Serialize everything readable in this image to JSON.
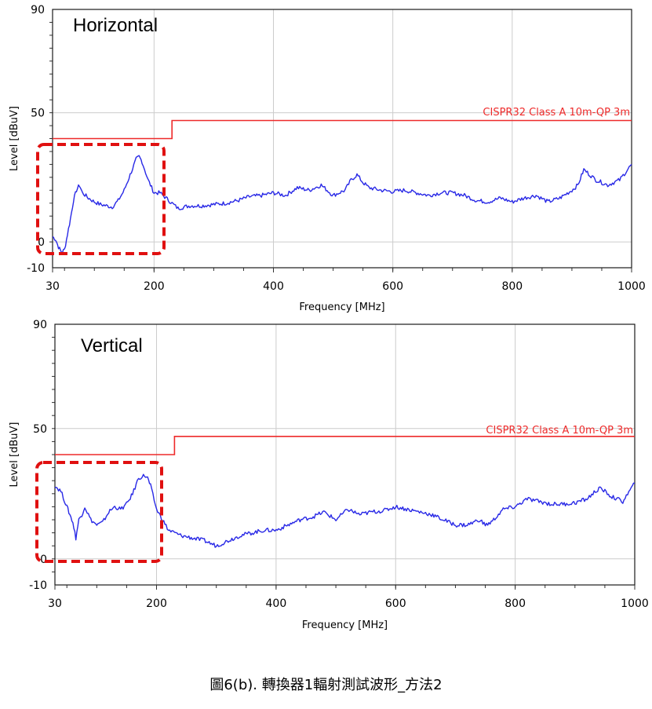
{
  "chart_data": [
    {
      "type": "line",
      "title": "Horizontal",
      "xlabel": "Frequency [MHz]",
      "ylabel": "Level [dBuV]",
      "xlim": [
        30,
        1000
      ],
      "ylim": [
        -10,
        90
      ],
      "x_ticks": [
        30,
        200,
        400,
        600,
        800,
        1000
      ],
      "y_ticks": [
        -10,
        0,
        50,
        90
      ],
      "grid": true,
      "limit_line": {
        "name": "CISPR32 Class A 10m-QP 3m",
        "points": [
          [
            30,
            40
          ],
          [
            230,
            40
          ],
          [
            230,
            47
          ],
          [
            1000,
            47
          ]
        ]
      },
      "series": [
        {
          "points": [
            [
              30,
              2
            ],
            [
              35,
              1
            ],
            [
              40,
              -2
            ],
            [
              45,
              -4
            ],
            [
              50,
              -3
            ],
            [
              55,
              3
            ],
            [
              60,
              9
            ],
            [
              65,
              16
            ],
            [
              70,
              20
            ],
            [
              75,
              22
            ],
            [
              80,
              19
            ],
            [
              90,
              17
            ],
            [
              100,
              15.5
            ],
            [
              110,
              14.5
            ],
            [
              120,
              14
            ],
            [
              130,
              13.5
            ],
            [
              140,
              16
            ],
            [
              150,
              20
            ],
            [
              160,
              26
            ],
            [
              170,
              32
            ],
            [
              175,
              33
            ],
            [
              180,
              31
            ],
            [
              190,
              24
            ],
            [
              200,
              19
            ],
            [
              210,
              19
            ],
            [
              220,
              17
            ],
            [
              230,
              15
            ],
            [
              240,
              13
            ],
            [
              250,
              13.5
            ],
            [
              260,
              14
            ],
            [
              280,
              14
            ],
            [
              300,
              14.5
            ],
            [
              320,
              15
            ],
            [
              340,
              16
            ],
            [
              360,
              17.5
            ],
            [
              380,
              18
            ],
            [
              400,
              19
            ],
            [
              420,
              18
            ],
            [
              440,
              21
            ],
            [
              460,
              20
            ],
            [
              480,
              22
            ],
            [
              500,
              18
            ],
            [
              520,
              20
            ],
            [
              530,
              24
            ],
            [
              540,
              26
            ],
            [
              550,
              23
            ],
            [
              560,
              21
            ],
            [
              580,
              20
            ],
            [
              600,
              19.5
            ],
            [
              620,
              20
            ],
            [
              640,
              19
            ],
            [
              660,
              18
            ],
            [
              680,
              19
            ],
            [
              700,
              19
            ],
            [
              720,
              18
            ],
            [
              740,
              16
            ],
            [
              760,
              15.5
            ],
            [
              780,
              17
            ],
            [
              800,
              15.5
            ],
            [
              820,
              17
            ],
            [
              840,
              18
            ],
            [
              860,
              15.5
            ],
            [
              880,
              17
            ],
            [
              900,
              20
            ],
            [
              910,
              22
            ],
            [
              920,
              28
            ],
            [
              930,
              26
            ],
            [
              940,
              24
            ],
            [
              960,
              22
            ],
            [
              980,
              24
            ],
            [
              1000,
              30
            ]
          ]
        }
      ]
    },
    {
      "type": "line",
      "title": "Vertical",
      "xlabel": "Frequency [MHz]",
      "ylabel": "Level [dBuV]",
      "xlim": [
        30,
        1000
      ],
      "ylim": [
        -10,
        90
      ],
      "x_ticks": [
        30,
        200,
        400,
        600,
        800,
        1000
      ],
      "y_ticks": [
        -10,
        0,
        50,
        90
      ],
      "grid": true,
      "limit_line": {
        "name": "CISPR32 Class A 10m-QP 3m",
        "points": [
          [
            30,
            40
          ],
          [
            230,
            40
          ],
          [
            230,
            47
          ],
          [
            1000,
            47
          ]
        ]
      },
      "series": [
        {
          "points": [
            [
              30,
              28
            ],
            [
              40,
              26
            ],
            [
              50,
              20
            ],
            [
              55,
              17
            ],
            [
              60,
              14
            ],
            [
              65,
              8
            ],
            [
              70,
              15
            ],
            [
              75,
              17
            ],
            [
              80,
              20
            ],
            [
              90,
              15
            ],
            [
              100,
              13
            ],
            [
              110,
              14
            ],
            [
              120,
              18
            ],
            [
              130,
              20
            ],
            [
              140,
              19
            ],
            [
              150,
              21
            ],
            [
              160,
              25
            ],
            [
              170,
              31
            ],
            [
              180,
              32
            ],
            [
              185,
              31
            ],
            [
              190,
              28
            ],
            [
              200,
              19
            ],
            [
              210,
              15
            ],
            [
              220,
              11
            ],
            [
              240,
              9
            ],
            [
              260,
              8
            ],
            [
              280,
              7
            ],
            [
              300,
              5
            ],
            [
              320,
              7
            ],
            [
              340,
              9
            ],
            [
              360,
              10
            ],
            [
              380,
              11
            ],
            [
              400,
              11
            ],
            [
              420,
              13
            ],
            [
              440,
              15
            ],
            [
              460,
              16
            ],
            [
              480,
              18
            ],
            [
              500,
              15
            ],
            [
              520,
              19
            ],
            [
              540,
              17
            ],
            [
              560,
              18
            ],
            [
              580,
              18.5
            ],
            [
              600,
              20
            ],
            [
              620,
              19
            ],
            [
              640,
              18
            ],
            [
              660,
              17
            ],
            [
              680,
              15
            ],
            [
              700,
              13
            ],
            [
              720,
              13
            ],
            [
              740,
              15
            ],
            [
              750,
              13
            ],
            [
              760,
              14
            ],
            [
              780,
              19
            ],
            [
              800,
              20
            ],
            [
              820,
              23
            ],
            [
              840,
              22
            ],
            [
              860,
              21
            ],
            [
              880,
              21
            ],
            [
              900,
              21.5
            ],
            [
              920,
              23
            ],
            [
              940,
              27
            ],
            [
              950,
              26
            ],
            [
              960,
              24
            ],
            [
              980,
              22
            ],
            [
              1000,
              29
            ]
          ]
        }
      ]
    }
  ],
  "caption": "圖6(b). 轉換器1輻射測試波形_方法2",
  "colors": {
    "trace": "#2828e6",
    "limit": "#ee2a2a",
    "highlight_box": "#e01010",
    "grid": "#cccccc",
    "frame": "#1a1a1a"
  }
}
